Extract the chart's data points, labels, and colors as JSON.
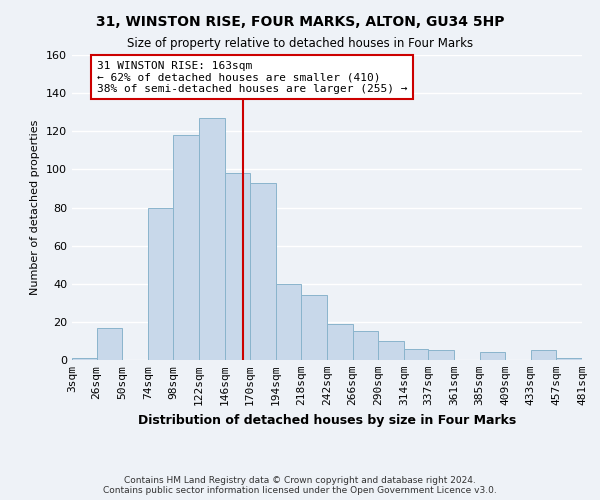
{
  "title": "31, WINSTON RISE, FOUR MARKS, ALTON, GU34 5HP",
  "subtitle": "Size of property relative to detached houses in Four Marks",
  "xlabel": "Distribution of detached houses by size in Four Marks",
  "ylabel": "Number of detached properties",
  "bar_color": "#c8d8ea",
  "bar_edge_color": "#8ab4cc",
  "background_color": "#eef2f7",
  "grid_color": "#ffffff",
  "bin_edges": [
    3,
    26,
    50,
    74,
    98,
    122,
    146,
    170,
    194,
    218,
    242,
    266,
    290,
    314,
    337,
    361,
    385,
    409,
    433,
    457,
    481
  ],
  "bin_labels": [
    "3sqm",
    "26sqm",
    "50sqm",
    "74sqm",
    "98sqm",
    "122sqm",
    "146sqm",
    "170sqm",
    "194sqm",
    "218sqm",
    "242sqm",
    "266sqm",
    "290sqm",
    "314sqm",
    "337sqm",
    "361sqm",
    "385sqm",
    "409sqm",
    "433sqm",
    "457sqm",
    "481sqm"
  ],
  "counts": [
    1,
    17,
    0,
    80,
    118,
    127,
    98,
    93,
    40,
    34,
    19,
    15,
    10,
    6,
    5,
    0,
    4,
    0,
    5,
    1
  ],
  "property_size": 163,
  "property_line_color": "#cc0000",
  "annotation_line1": "31 WINSTON RISE: 163sqm",
  "annotation_line2": "← 62% of detached houses are smaller (410)",
  "annotation_line3": "38% of semi-detached houses are larger (255) →",
  "annotation_box_color": "#ffffff",
  "annotation_box_edge": "#cc0000",
  "ylim": [
    0,
    160
  ],
  "yticks": [
    0,
    20,
    40,
    60,
    80,
    100,
    120,
    140,
    160
  ],
  "footer1": "Contains HM Land Registry data © Crown copyright and database right 2024.",
  "footer2": "Contains public sector information licensed under the Open Government Licence v3.0."
}
